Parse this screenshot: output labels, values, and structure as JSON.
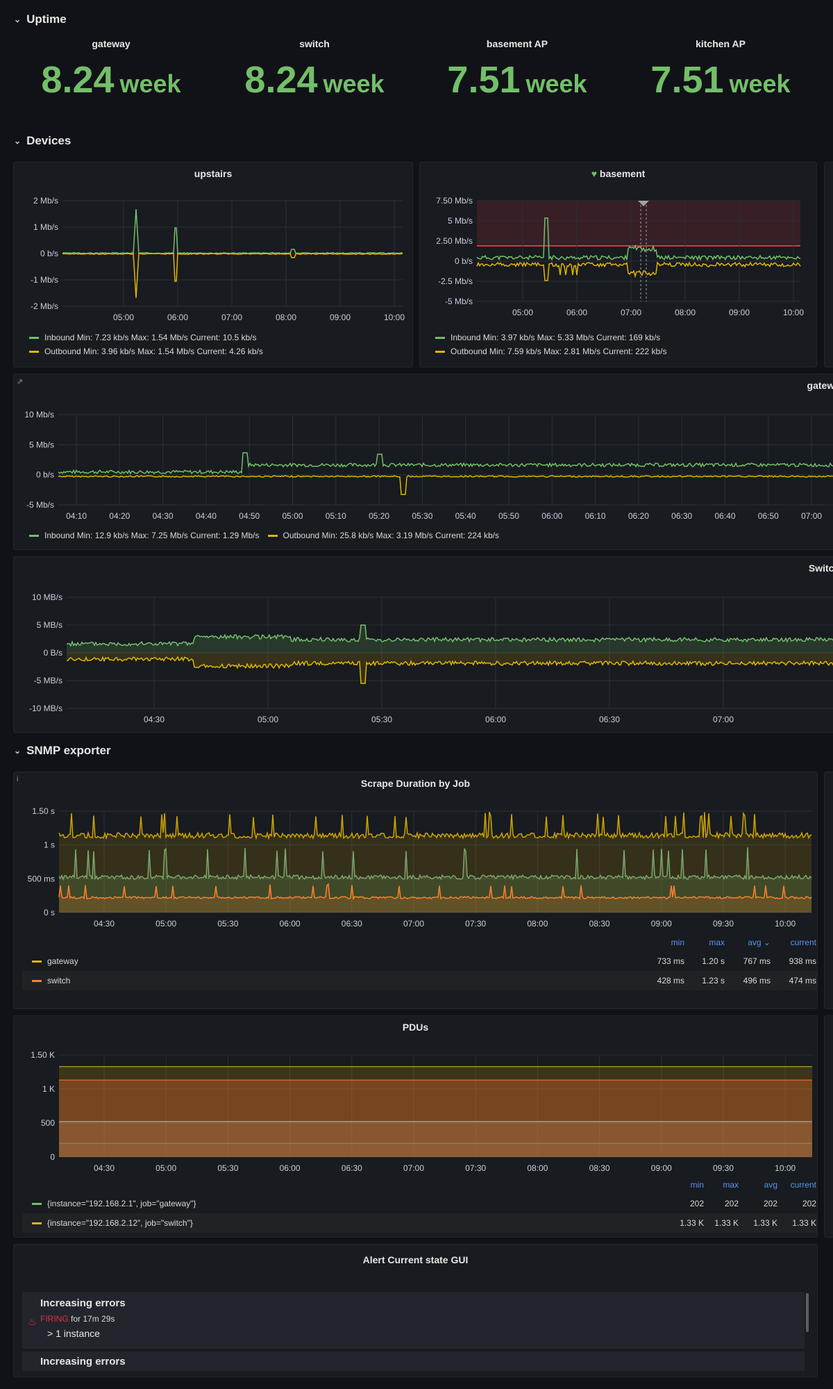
{
  "rows": {
    "uptime": "Uptime",
    "devices": "Devices",
    "snmp": "SNMP exporter"
  },
  "stats": [
    {
      "label": "gateway",
      "value": "8.24",
      "unit": "week"
    },
    {
      "label": "switch",
      "value": "8.24",
      "unit": "week"
    },
    {
      "label": "basement AP",
      "value": "7.51",
      "unit": "week"
    },
    {
      "label": "kitchen AP",
      "value": "7.51",
      "unit": "week"
    }
  ],
  "colors": {
    "green": "#73bf69",
    "yellow": "#e0b400",
    "orange": "#ff7f2a",
    "red": "#e02f44",
    "blue": "#5794f2"
  },
  "panels": {
    "upstairs": {
      "title": "upstairs",
      "yticks": [
        "2 Mb/s",
        "1 Mb/s",
        "0 b/s",
        "-1 Mb/s",
        "-2 Mb/s"
      ],
      "xticks": [
        "05:00",
        "06:00",
        "07:00",
        "08:00",
        "09:00",
        "10:00"
      ],
      "legend": [
        "Inbound  Min: 7.23 kb/s  Max: 1.54 Mb/s  Current: 10.5 kb/s",
        "Outbound  Min: 3.96 kb/s  Max: 1.54 Mb/s  Current: 4.26 kb/s"
      ]
    },
    "basement": {
      "title": "basement",
      "heart_icon": "heart-icon",
      "yticks": [
        "7.50 Mb/s",
        "5 Mb/s",
        "2.50 Mb/s",
        "0 b/s",
        "-2.5 Mb/s",
        "-5 Mb/s"
      ],
      "xticks": [
        "05:00",
        "06:00",
        "07:00",
        "08:00",
        "09:00",
        "10:00"
      ],
      "legend": [
        "Inbound  Min: 3.97 kb/s  Max: 5.33 Mb/s  Current: 169 kb/s",
        "Outbound  Min: 7.59 kb/s  Max: 2.81 Mb/s  Current: 222 kb/s"
      ]
    },
    "gateway": {
      "title": "gatewa",
      "yticks": [
        "10 Mb/s",
        "5 Mb/s",
        "0 b/s",
        "-5 Mb/s"
      ],
      "xticks": [
        "04:10",
        "04:20",
        "04:30",
        "04:40",
        "04:50",
        "05:00",
        "05:10",
        "05:20",
        "05:30",
        "05:40",
        "05:50",
        "06:00",
        "06:10",
        "06:20",
        "06:30",
        "06:40",
        "06:50",
        "07:00"
      ],
      "legend": [
        "Inbound  Min: 12.9 kb/s  Max: 7.25 Mb/s  Current: 1.29 Mb/s",
        "Outbound  Min: 25.8 kb/s  Max: 3.19 Mb/s  Current: 224 kb/s"
      ]
    },
    "switch": {
      "title": "Switch",
      "yticks": [
        "10 MB/s",
        "5 MB/s",
        "0 B/s",
        "-5 MB/s",
        "-10 MB/s"
      ],
      "xticks": [
        "04:30",
        "05:00",
        "05:30",
        "06:00",
        "06:30",
        "07:00"
      ]
    },
    "scrape": {
      "title": "Scrape Duration by Job",
      "yticks": [
        "1.50 s",
        "1 s",
        "500 ms",
        "0 s"
      ],
      "xticks": [
        "04:30",
        "05:00",
        "05:30",
        "06:00",
        "06:30",
        "07:00",
        "07:30",
        "08:00",
        "08:30",
        "09:00",
        "09:30",
        "10:00"
      ],
      "headers": [
        "min",
        "max",
        "avg ⌄",
        "current"
      ],
      "rows": [
        {
          "name": "gateway",
          "min": "733 ms",
          "max": "1.20 s",
          "avg": "767 ms",
          "current": "938 ms"
        },
        {
          "name": "switch",
          "min": "428 ms",
          "max": "1.23 s",
          "avg": "496 ms",
          "current": "474 ms"
        }
      ]
    },
    "pdus": {
      "title": "PDUs",
      "yticks": [
        "1.50 K",
        "1 K",
        "500",
        "0"
      ],
      "xticks": [
        "04:30",
        "05:00",
        "05:30",
        "06:00",
        "06:30",
        "07:00",
        "07:30",
        "08:00",
        "08:30",
        "09:00",
        "09:30",
        "10:00"
      ],
      "headers": [
        "min",
        "max",
        "avg",
        "current"
      ],
      "rows": [
        {
          "name": "{instance=\"192.168.2.1\", job=\"gateway\"}",
          "min": "202",
          "max": "202",
          "avg": "202",
          "current": "202"
        },
        {
          "name": "{instance=\"192.168.2.12\", job=\"switch\"}",
          "min": "1.33 K",
          "max": "1.33 K",
          "avg": "1.33 K",
          "current": "1.33 K"
        }
      ]
    },
    "alerts": {
      "title": "Alert Current state GUI",
      "items": [
        {
          "name": "Increasing errors",
          "state": "FIRING",
          "duration": "for 17m 29s",
          "detail": "> 1 instance"
        },
        {
          "name": "Increasing errors"
        }
      ]
    }
  }
}
